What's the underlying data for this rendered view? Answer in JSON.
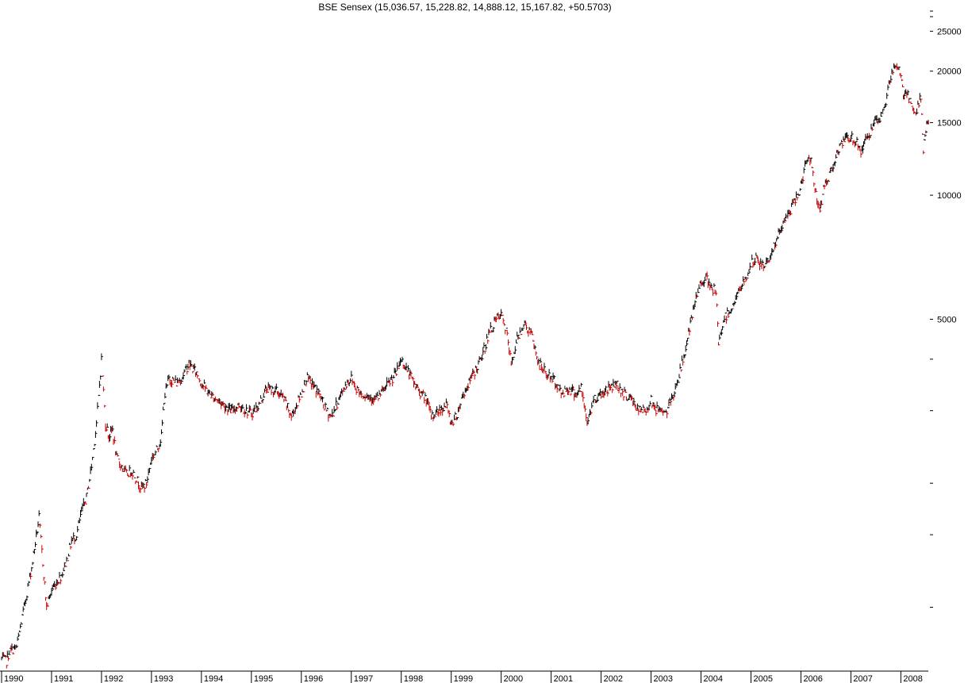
{
  "chart_data": {
    "type": "line",
    "title": "BSE Sensex (15,036.57, 15,228.82, 14,888.12, 15,167.82, +50.5703)",
    "xlabel": "",
    "ylabel": "",
    "y_scale": "log",
    "ylim": [
      700,
      27000
    ],
    "xlim": [
      1990.0,
      2008.55
    ],
    "grid": false,
    "up_color": "#000000",
    "down_color": "#cc0000",
    "y_tick_labels": [
      "5000",
      "10000",
      "15000",
      "20000",
      "25000"
    ],
    "y_ticks_all": [
      1000,
      1500,
      2000,
      3000,
      4000,
      5000,
      10000,
      15000,
      20000,
      25000
    ],
    "y_ticks_minor": [
      30000,
      35000
    ],
    "x_tick_labels": [
      "1990",
      "1991",
      "1992",
      "1993",
      "1994",
      "1995",
      "1996",
      "1997",
      "1998",
      "1999",
      "2000",
      "2001",
      "2002",
      "2003",
      "2004",
      "2005",
      "2006",
      "2007",
      "2008"
    ],
    "series": [
      {
        "x": [
          1990.0,
          1990.1,
          1990.15,
          1990.3,
          1990.45,
          1990.6,
          1990.75,
          1990.9,
          1991.0,
          1991.1,
          1991.2,
          1991.3,
          1991.4,
          1991.5,
          1991.6,
          1991.7,
          1991.8,
          1991.9,
          1992.0,
          1992.08,
          1992.15,
          1992.22,
          1992.3,
          1992.4,
          1992.5,
          1992.6,
          1992.7,
          1992.8,
          1992.9,
          1993.0,
          1993.1,
          1993.2,
          1993.25,
          1993.35,
          1993.5,
          1993.6,
          1993.75,
          1993.9,
          1994.0,
          1994.15,
          1994.3,
          1994.45,
          1994.6,
          1994.75,
          1994.9,
          1995.0,
          1995.15,
          1995.3,
          1995.5,
          1995.65,
          1995.8,
          1996.0,
          1996.1,
          1996.2,
          1996.35,
          1996.5,
          1996.6,
          1996.75,
          1996.9,
          1997.0,
          1997.1,
          1997.2,
          1997.35,
          1997.5,
          1997.6,
          1997.75,
          1997.9,
          1998.0,
          1998.1,
          1998.25,
          1998.4,
          1998.5,
          1998.6,
          1998.75,
          1998.9,
          1999.0,
          1999.1,
          1999.2,
          1999.3,
          1999.45,
          1999.6,
          1999.75,
          1999.9,
          2000.0,
          2000.1,
          2000.2,
          2000.3,
          2000.45,
          2000.6,
          2000.75,
          2000.9,
          2001.0,
          2001.1,
          2001.2,
          2001.35,
          2001.5,
          2001.6,
          2001.72,
          2001.85,
          2002.0,
          2002.15,
          2002.3,
          2002.45,
          2002.6,
          2002.75,
          2002.9,
          2003.0,
          2003.1,
          2003.2,
          2003.3,
          2003.45,
          2003.6,
          2003.75,
          2003.9,
          2004.0,
          2004.1,
          2004.2,
          2004.3,
          2004.35,
          2004.45,
          2004.6,
          2004.75,
          2004.9,
          2005.0,
          2005.1,
          2005.25,
          2005.4,
          2005.55,
          2005.7,
          2005.85,
          2006.0,
          2006.1,
          2006.2,
          2006.3,
          2006.38,
          2006.45,
          2006.55,
          2006.7,
          2006.85,
          2007.0,
          2007.1,
          2007.2,
          2007.35,
          2007.5,
          2007.6,
          2007.7,
          2007.8,
          2007.9,
          2008.0,
          2008.05,
          2008.1,
          2008.2,
          2008.3,
          2008.4,
          2008.45,
          2008.5,
          2008.55
        ],
        "y": [
          750,
          740,
          780,
          800,
          1000,
          1250,
          1650,
          1000,
          1100,
          1150,
          1200,
          1300,
          1450,
          1500,
          1700,
          1850,
          2200,
          2800,
          4000,
          2800,
          2600,
          2700,
          2300,
          2200,
          2100,
          2150,
          2050,
          1950,
          2000,
          2300,
          2400,
          2600,
          3200,
          3600,
          3500,
          3600,
          3900,
          3700,
          3500,
          3300,
          3200,
          3100,
          3000,
          3100,
          3000,
          2950,
          3100,
          3400,
          3350,
          3200,
          2900,
          3300,
          3600,
          3500,
          3300,
          3000,
          2900,
          3200,
          3500,
          3600,
          3400,
          3300,
          3250,
          3200,
          3300,
          3500,
          3700,
          4000,
          3800,
          3500,
          3300,
          3200,
          2900,
          3000,
          3100,
          2800,
          2900,
          3200,
          3400,
          3700,
          4000,
          4600,
          5000,
          5100,
          4700,
          3900,
          4400,
          4900,
          4600,
          3900,
          3700,
          3600,
          3500,
          3300,
          3400,
          3300,
          3400,
          2800,
          3200,
          3300,
          3400,
          3500,
          3300,
          3200,
          3000,
          3000,
          3200,
          3000,
          3050,
          2950,
          3300,
          3800,
          4600,
          5600,
          6200,
          6300,
          5900,
          5900,
          4300,
          5000,
          5300,
          5800,
          6300,
          6800,
          7000,
          6700,
          7200,
          8000,
          8800,
          9500,
          10500,
          12000,
          12300,
          10000,
          9000,
          10500,
          11000,
          12500,
          13500,
          13800,
          13500,
          12800,
          14000,
          15000,
          15300,
          17000,
          19500,
          20500,
          19700,
          17500,
          18000,
          16500,
          15500,
          17500,
          13000,
          14500,
          15167.82
        ]
      }
    ]
  }
}
